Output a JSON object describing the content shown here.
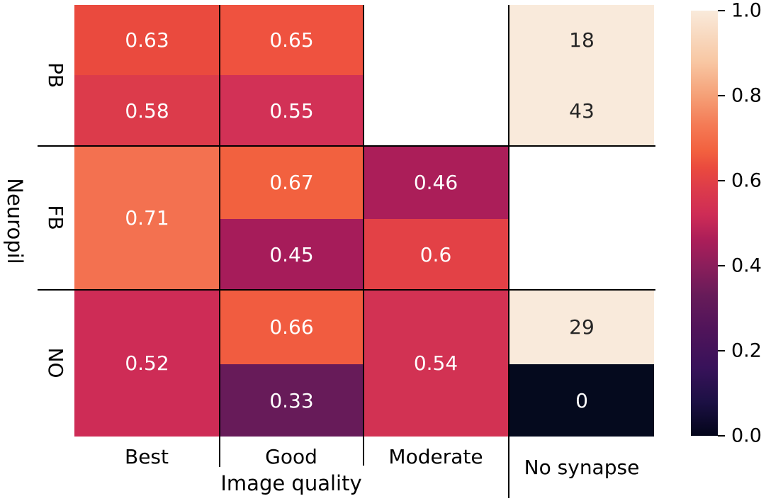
{
  "chart_data": {
    "type": "heatmap",
    "title": "",
    "xlabel": "Image quality",
    "ylabel": "Neuropil",
    "x_categories": [
      "Best",
      "Good",
      "Moderate",
      "No synapse"
    ],
    "y_categories": [
      "PB",
      "FB",
      "NO"
    ],
    "colormap": "rocket",
    "value_range": [
      0.0,
      1.0
    ],
    "grid_line_color": "#000000",
    "background_color": "#FFFFFF",
    "cells": [
      {
        "row": "PB",
        "col": "Best",
        "sub": "top",
        "label": "0.63",
        "value": 0.63,
        "color": "#EA4A3E",
        "text_color": "#FFFFFF"
      },
      {
        "row": "PB",
        "col": "Good",
        "sub": "top",
        "label": "0.65",
        "value": 0.65,
        "color": "#EF523F",
        "text_color": "#FFFFFF"
      },
      {
        "row": "PB",
        "col": "Best",
        "sub": "bottom",
        "label": "0.58",
        "value": 0.58,
        "color": "#DC3B4B",
        "text_color": "#FFFFFF"
      },
      {
        "row": "PB",
        "col": "Good",
        "sub": "bottom",
        "label": "0.55",
        "value": 0.55,
        "color": "#D23156",
        "text_color": "#FFFFFF"
      },
      {
        "row": "PB",
        "col": "No synapse",
        "sub": "top",
        "label": "18",
        "value": 1.0,
        "color": "#F9EADB",
        "text_color": "#262626"
      },
      {
        "row": "PB",
        "col": "No synapse",
        "sub": "bottom",
        "label": "43",
        "value": 1.0,
        "color": "#F9EADB",
        "text_color": "#262626"
      },
      {
        "row": "FB",
        "col": "Best",
        "sub": "full",
        "label": "0.71",
        "value": 0.71,
        "color": "#F37150",
        "text_color": "#FFFFFF"
      },
      {
        "row": "FB",
        "col": "Good",
        "sub": "top",
        "label": "0.67",
        "value": 0.67,
        "color": "#F2613F",
        "text_color": "#FFFFFF"
      },
      {
        "row": "FB",
        "col": "Good",
        "sub": "bottom",
        "label": "0.45",
        "value": 0.45,
        "color": "#A61C5A",
        "text_color": "#FFFFFF"
      },
      {
        "row": "FB",
        "col": "Moderate",
        "sub": "top",
        "label": "0.46",
        "value": 0.46,
        "color": "#AB1E59",
        "text_color": "#FFFFFF"
      },
      {
        "row": "FB",
        "col": "Moderate",
        "sub": "bottom",
        "label": "0.6",
        "value": 0.6,
        "color": "#E34146",
        "text_color": "#FFFFFF"
      },
      {
        "row": "NO",
        "col": "Best",
        "sub": "full",
        "label": "0.52",
        "value": 0.52,
        "color": "#CE2C56",
        "text_color": "#FFFFFF"
      },
      {
        "row": "NO",
        "col": "Good",
        "sub": "top",
        "label": "0.66",
        "value": 0.66,
        "color": "#F15C40",
        "text_color": "#FFFFFF"
      },
      {
        "row": "NO",
        "col": "Good",
        "sub": "bottom",
        "label": "0.33",
        "value": 0.33,
        "color": "#671B59",
        "text_color": "#FFFFFF"
      },
      {
        "row": "NO",
        "col": "Moderate",
        "sub": "full",
        "label": "0.54",
        "value": 0.54,
        "color": "#D23253",
        "text_color": "#FFFFFF"
      },
      {
        "row": "NO",
        "col": "No synapse",
        "sub": "top",
        "label": "29",
        "value": 1.0,
        "color": "#F9EADB",
        "text_color": "#262626"
      },
      {
        "row": "NO",
        "col": "No synapse",
        "sub": "bottom",
        "label": "0",
        "value": 0.0,
        "color": "#050A1E",
        "text_color": "#FFFFFF"
      }
    ],
    "colorbar": {
      "min": 0.0,
      "max": 1.0,
      "ticks": [
        "1.0",
        "0.8",
        "0.6",
        "0.4",
        "0.2",
        "0.0"
      ]
    },
    "legend": "none",
    "grid": "black category separator lines"
  }
}
